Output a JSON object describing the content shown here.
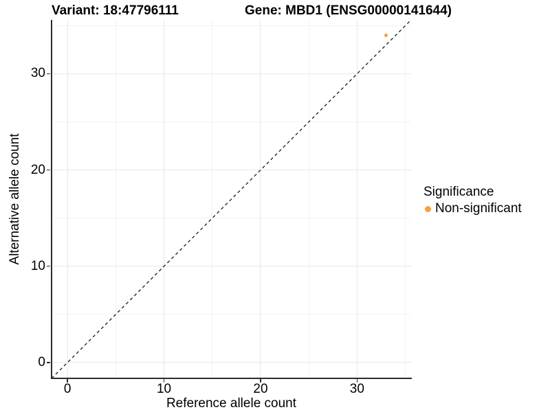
{
  "chart_data": {
    "type": "scatter",
    "titles": {
      "left": "Variant: 18:47796111",
      "right": "Gene: MBD1 (ENSG00000141644)"
    },
    "xlabel": "Reference allele count",
    "ylabel": "Alternative allele count",
    "xlim": [
      -1.65,
      35.6
    ],
    "ylim": [
      -1.65,
      35.6
    ],
    "x_major_ticks": [
      0,
      10,
      20,
      30
    ],
    "y_major_ticks": [
      0,
      10,
      20,
      30
    ],
    "x_minor_gridlines": [
      5,
      15,
      25,
      35
    ],
    "y_minor_gridlines": [
      5,
      15,
      25,
      35
    ],
    "points": [
      {
        "x": 33,
        "y": 34,
        "series": "Non-significant",
        "color": "#F8A13E"
      }
    ],
    "identity_line": {
      "equation": "y = x",
      "style": "dashed",
      "color": "#1A1A1A"
    },
    "legend": {
      "title": "Significance",
      "position": "right",
      "entries": [
        {
          "label": "Non-significant",
          "color": "#F8A13E"
        }
      ]
    },
    "grid": true,
    "colors": {
      "background": "#FFFFFF",
      "major_grid": "#E7E7E7",
      "minor_grid": "#F3F3F3",
      "axis_line": "#2B2B2B",
      "point": "#F8A13E"
    }
  }
}
